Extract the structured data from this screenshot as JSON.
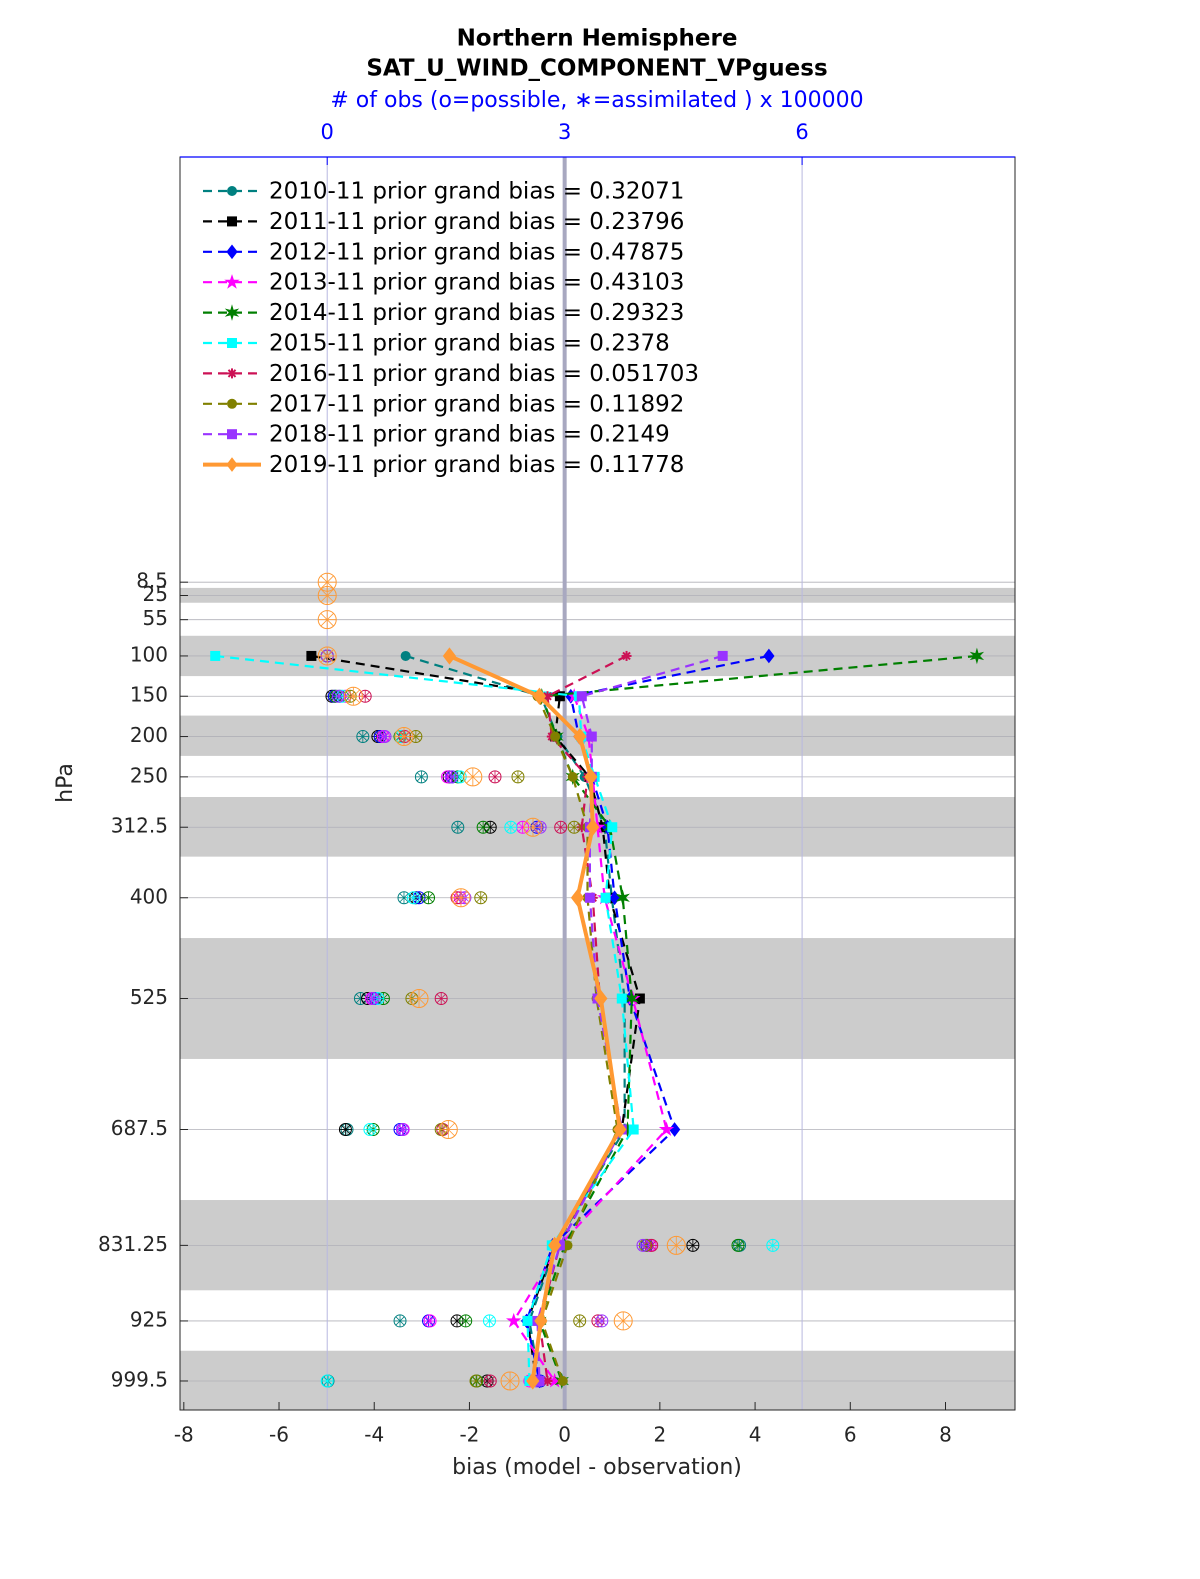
{
  "chart_data": {
    "type": "line",
    "title": "Northern Hemisphere",
    "subtitle": "SAT_U_WIND_COMPONENT_VPguess",
    "xlabel": "bias (model - observation)",
    "ylabel": "hPa",
    "x2label": "# of obs (o=possible, ∗=assimilated ) x 100000",
    "xlim": [
      -8.08,
      9.46
    ],
    "xticks": [
      -8,
      -6,
      -4,
      -2,
      0,
      2,
      4,
      6,
      8
    ],
    "x2lim": [
      -1.86,
      8.69
    ],
    "x2ticks": [
      0,
      3,
      6
    ],
    "ylim": [
      1035.5,
      -519
    ],
    "yticks": [
      8.5,
      25,
      55,
      100,
      150,
      200,
      250,
      312.5,
      400,
      525,
      687.5,
      831.25,
      925,
      999.5
    ],
    "y": [
      8.5,
      25,
      55,
      100,
      150,
      200,
      250,
      312.5,
      400,
      525,
      687.5,
      831.25,
      925,
      999.5
    ],
    "shaded_layers": [
      [
        15.6,
        34
      ],
      [
        75,
        125
      ],
      [
        174,
        224
      ],
      [
        275,
        349
      ],
      [
        450,
        600
      ],
      [
        775,
        887
      ],
      [
        962,
        1035
      ]
    ],
    "grid": true,
    "legend": "upper left",
    "series": [
      {
        "name": "2010-11 prior grand bias = 0.32071",
        "color": "#008080",
        "marker": "circle",
        "dashed": true,
        "values": [
          null,
          null,
          null,
          -3.34,
          -0.5,
          -0.15,
          0.42,
          0.84,
          0.99,
          1.26,
          1.26,
          -0.19,
          -0.74,
          -0.53
        ],
        "obs": [
          null,
          null,
          null,
          0,
          0.16,
          0.45,
          1.19,
          1.65,
          0.97,
          0.42,
          0.25,
          5.21,
          0.92,
          0.01
        ]
      },
      {
        "name": "2011-11 prior grand bias = 0.23796",
        "color": "#000000",
        "marker": "square",
        "dashed": true,
        "values": [
          null,
          null,
          null,
          -5.32,
          -0.1,
          -0.2,
          0.52,
          0.8,
          0.95,
          1.58,
          1.2,
          -0.21,
          -0.78,
          -0.59
        ],
        "obs": [
          null,
          null,
          null,
          0,
          0.06,
          0.64,
          1.54,
          2.06,
          1.12,
          0.51,
          0.23,
          4.62,
          1.64,
          2.02
        ]
      },
      {
        "name": "2012-11 prior grand bias = 0.47875",
        "color": "#0000ff",
        "marker": "diamond",
        "dashed": true,
        "values": [
          null,
          null,
          null,
          4.29,
          0.13,
          0.3,
          0.57,
          0.9,
          1.05,
          1.37,
          2.31,
          -0.25,
          -0.8,
          -0.53
        ],
        "obs": [
          null,
          null,
          null,
          0,
          0.09,
          0.67,
          1.58,
          2.65,
          1.16,
          0.61,
          0.92,
          4.04,
          1.28,
          2.69
        ]
      },
      {
        "name": "2013-11 prior grand bias = 0.43103",
        "color": "#ff00ff",
        "marker": "star",
        "dashed": true,
        "values": [
          null,
          null,
          null,
          null,
          0.2,
          0.5,
          0.59,
          0.69,
          0.84,
          1.43,
          2.14,
          -0.1,
          -1.07,
          -0.21
        ],
        "obs": [
          null,
          null,
          null,
          0,
          0.23,
          0.71,
          1.52,
          2.47,
          1.68,
          0.56,
          0.96,
          4.08,
          1.3,
          2.56
        ]
      },
      {
        "name": "2014-11 prior grand bias = 0.29323",
        "color": "#007f00",
        "marker": "hexagram",
        "dashed": true,
        "values": [
          null,
          null,
          null,
          8.66,
          -0.48,
          -0.17,
          0.17,
          0.95,
          1.22,
          1.41,
          1.32,
          0,
          -0.53,
          -0.06
        ],
        "obs": [
          null,
          null,
          null,
          0,
          0.11,
          0.92,
          1.65,
          1.97,
          1.28,
          0.71,
          0.58,
          5.19,
          1.75,
          1.89
        ]
      },
      {
        "name": "2015-11 prior grand bias = 0.2378",
        "color": "#00ffff",
        "marker": "square",
        "dashed": true,
        "values": [
          null,
          null,
          null,
          -7.34,
          0.3,
          0.35,
          0.63,
          1.0,
          0.86,
          1.2,
          1.45,
          -0.27,
          -0.78,
          -0.74
        ],
        "obs": [
          null,
          null,
          null,
          0,
          0.19,
          0.93,
          1.68,
          2.32,
          1.09,
          0.64,
          0.54,
          5.63,
          2.05,
          0
        ]
      },
      {
        "name": "2016-11 prior grand bias = 0.051703",
        "color": "#cc1155",
        "marker": "asterisk",
        "dashed": true,
        "values": [
          null,
          null,
          null,
          1.3,
          -0.36,
          -0.27,
          0.48,
          0.36,
          0.59,
          0.74,
          1.16,
          -0.1,
          -0.53,
          -0.36
        ],
        "obs": [
          null,
          null,
          null,
          0,
          0.48,
          0.98,
          2.12,
          2.95,
          1.64,
          1.44,
          1.46,
          4.1,
          3.42,
          2.06
        ]
      },
      {
        "name": "2017-11 prior grand bias = 0.11892",
        "color": "#808000",
        "marker": "circle",
        "dashed": true,
        "values": [
          null,
          null,
          null,
          null,
          -0.57,
          -0.2,
          0.17,
          0.48,
          0.48,
          0.67,
          1.11,
          0.06,
          -0.48,
          -0.04
        ],
        "obs": [
          null,
          null,
          null,
          0,
          0.29,
          1.12,
          2.41,
          3.12,
          1.94,
          1.07,
          1.44,
          4.02,
          3.19,
          1.88
        ]
      },
      {
        "name": "2018-11 prior grand bias = 0.2149",
        "color": "#9933ff",
        "marker": "square",
        "dashed": true,
        "values": [
          null,
          null,
          null,
          3.32,
          0.36,
          0.57,
          0.57,
          0.53,
          0.53,
          0.69,
          1.2,
          -0.1,
          -0.57,
          -0.53
        ],
        "obs": [
          null,
          null,
          null,
          0,
          0.14,
          0.73,
          1.57,
          2.69,
          1.74,
          0.58,
          0.95,
          3.99,
          3.47,
          2.65
        ]
      },
      {
        "name": "2019-11 prior grand bias = 0.11778",
        "color": "#ff9933",
        "marker": "diamond",
        "dashed": false,
        "values": [
          null,
          null,
          null,
          -2.42,
          -0.53,
          0.32,
          0.55,
          0.59,
          0.27,
          0.76,
          1.16,
          -0.21,
          -0.5,
          -0.67
        ],
        "obs": [
          0,
          0,
          0,
          0,
          0.33,
          0.97,
          1.84,
          2.6,
          1.69,
          1.16,
          1.53,
          4.41,
          3.74,
          2.31
        ]
      }
    ]
  }
}
